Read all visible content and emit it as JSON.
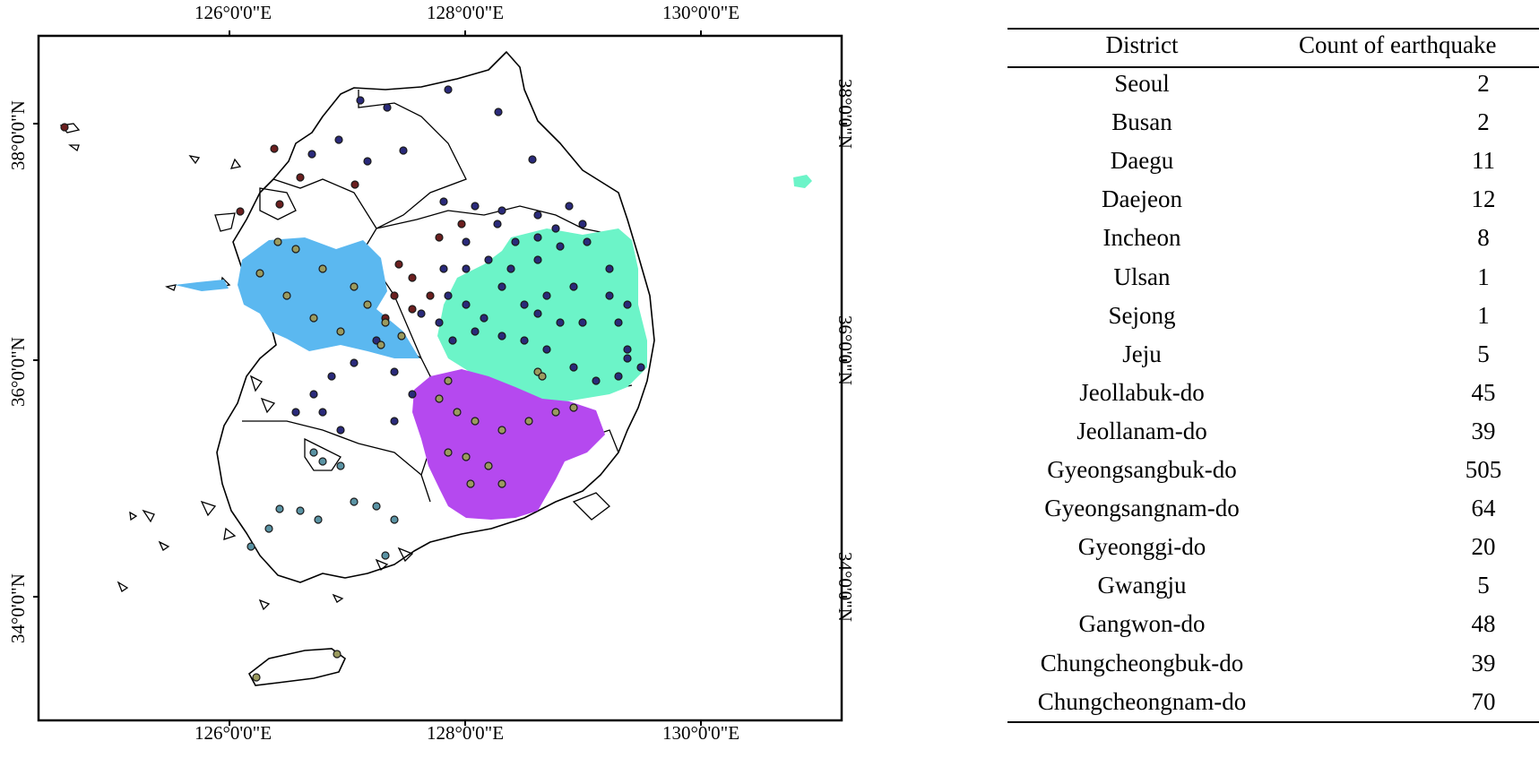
{
  "map": {
    "longitude_ticks_top": [
      "126°0'0\"E",
      "128°0'0\"E",
      "130°0'0\"E"
    ],
    "longitude_ticks_bottom": [
      "126°0'0\"E",
      "128°0'0\"E",
      "130°0'0\"E"
    ],
    "latitude_ticks_left": [
      "38°0'0\"N",
      "36°0'0\"N",
      "34°0'0\"N"
    ],
    "latitude_ticks_right": [
      "38°0'0\"N",
      "36°0'0\"N",
      "34°0'0\"N"
    ],
    "colors": {
      "zone_blue": "#5bb8f0",
      "zone_teal": "#6cf4c8",
      "zone_purple": "#b549ef",
      "dot_dark_navy": "#2a2a7a",
      "dot_dark_red": "#6b1f1f",
      "dot_olive": "#9a9a5e",
      "dot_steel": "#5a93a4",
      "outline": "#000000"
    }
  },
  "table": {
    "headers": [
      "District",
      "Count of earthquake"
    ],
    "rows": [
      {
        "district": "Seoul",
        "count": "2"
      },
      {
        "district": "Busan",
        "count": "2"
      },
      {
        "district": "Daegu",
        "count": "11"
      },
      {
        "district": "Daejeon",
        "count": "12"
      },
      {
        "district": "Incheon",
        "count": "8"
      },
      {
        "district": "Ulsan",
        "count": "1"
      },
      {
        "district": "Sejong",
        "count": "1"
      },
      {
        "district": "Jeju",
        "count": "5"
      },
      {
        "district": "Jeollabuk-do",
        "count": "45"
      },
      {
        "district": "Jeollanam-do",
        "count": "39"
      },
      {
        "district": "Gyeongsangbuk-do",
        "count": "505"
      },
      {
        "district": "Gyeongsangnam-do",
        "count": "64"
      },
      {
        "district": "Gyeonggi-do",
        "count": "20"
      },
      {
        "district": "Gwangju",
        "count": "5"
      },
      {
        "district": "Gangwon-do",
        "count": "48"
      },
      {
        "district": "Chungcheongbuk-do",
        "count": "39"
      },
      {
        "district": "Chungcheongnam-do",
        "count": "70"
      }
    ]
  }
}
